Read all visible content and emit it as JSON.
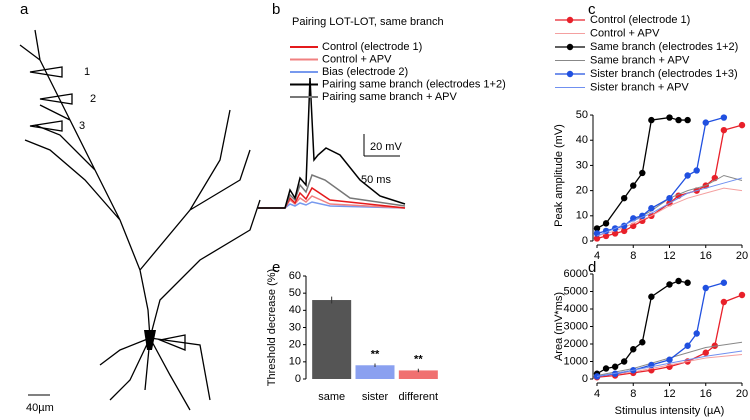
{
  "panels": {
    "a": {
      "label": "a",
      "electrodes": [
        "1",
        "2",
        "3"
      ],
      "scale_bar": "40µm"
    },
    "b": {
      "label": "b",
      "title": "Pairing LOT-LOT, same branch",
      "legend": [
        {
          "name": "Control (electrode 1)",
          "color": "#e41a1c"
        },
        {
          "name": "Control + APV",
          "color": "#f08080"
        },
        {
          "name": "Bias (electrode 2)",
          "color": "#7799ee"
        },
        {
          "name": "Pairing same branch (electrodes 1+2)",
          "color": "#000000"
        },
        {
          "name": "Pairing same branch + APV",
          "color": "#777777"
        }
      ],
      "scale_y": "20 mV",
      "scale_x": "50 ms"
    }
  },
  "chart_data": [
    {
      "type": "line",
      "panel_label": "c",
      "y_label": "Peak amplitude (mV)",
      "xlim": [
        4,
        20
      ],
      "xticks": [
        4,
        8,
        12,
        16,
        20
      ],
      "ylim": [
        0,
        52
      ],
      "yticks": [
        0,
        10,
        20,
        30,
        40,
        50
      ],
      "series": [
        {
          "name": "Control (electrode 1)",
          "color": "#e8202a",
          "markers": true,
          "x": [
            4,
            5,
            6,
            7,
            8,
            9,
            10,
            12,
            13,
            15,
            16,
            17,
            18,
            20
          ],
          "values": [
            1,
            2,
            3,
            4,
            6,
            8,
            10,
            15,
            18,
            20,
            22,
            25,
            44,
            46
          ]
        },
        {
          "name": "Control + APV",
          "color": "#f4a0a0",
          "markers": false,
          "x": [
            4,
            6,
            8,
            10,
            12,
            14,
            16,
            18,
            20
          ],
          "values": [
            2,
            4,
            7,
            10,
            14,
            17,
            19,
            21,
            20
          ]
        },
        {
          "name": "Same branch (electrodes 1+2)",
          "color": "#000000",
          "markers": true,
          "x": [
            4,
            5,
            7,
            8,
            9,
            10,
            12,
            13,
            14
          ],
          "values": [
            5,
            7,
            17,
            22,
            27,
            48,
            49,
            48,
            48
          ]
        },
        {
          "name": "Same branch + APV",
          "color": "#888888",
          "markers": false,
          "x": [
            4,
            6,
            8,
            10,
            12,
            14,
            16,
            18,
            20
          ],
          "values": [
            3,
            5,
            8,
            12,
            17,
            20,
            22,
            26,
            24
          ]
        },
        {
          "name": "Sister branch (electrodes 1+3)",
          "color": "#2050e0",
          "markers": true,
          "x": [
            4,
            5,
            6,
            7,
            8,
            9,
            10,
            12,
            14,
            15,
            16,
            18
          ],
          "values": [
            3,
            4,
            5,
            6,
            9,
            10,
            13,
            17,
            26,
            28,
            47,
            49
          ]
        },
        {
          "name": "Sister branch + APV",
          "color": "#7090f0",
          "markers": false,
          "x": [
            4,
            6,
            8,
            10,
            12,
            14,
            16,
            18,
            20
          ],
          "values": [
            2,
            5,
            8,
            11,
            15,
            19,
            21,
            23,
            25
          ]
        }
      ]
    },
    {
      "type": "line",
      "panel_label": "d",
      "y_label": "Area (mV*ms)",
      "x_label": "Stimulus intensity (µA)",
      "xlim": [
        4,
        20
      ],
      "xticks": [
        4,
        8,
        12,
        16,
        20
      ],
      "ylim": [
        0,
        6000
      ],
      "yticks": [
        0,
        1000,
        2000,
        3000,
        4000,
        5000,
        6000
      ],
      "series": [
        {
          "color": "#e8202a",
          "markers": true,
          "x": [
            4,
            6,
            8,
            10,
            12,
            14,
            16,
            17,
            18,
            20
          ],
          "values": [
            100,
            200,
            350,
            500,
            700,
            1000,
            1500,
            1900,
            4400,
            4800
          ]
        },
        {
          "color": "#f4a0a0",
          "markers": false,
          "x": [
            4,
            8,
            12,
            16,
            20
          ],
          "values": [
            150,
            400,
            800,
            1200,
            1400
          ]
        },
        {
          "color": "#000000",
          "markers": true,
          "x": [
            4,
            5,
            6,
            7,
            8,
            9,
            10,
            12,
            13,
            14
          ],
          "values": [
            300,
            600,
            700,
            1000,
            1700,
            2100,
            4700,
            5400,
            5600,
            5500
          ]
        },
        {
          "color": "#888888",
          "markers": false,
          "x": [
            4,
            8,
            12,
            16,
            20
          ],
          "values": [
            200,
            600,
            1200,
            1800,
            2100
          ]
        },
        {
          "color": "#2050e0",
          "markers": true,
          "x": [
            4,
            6,
            8,
            10,
            12,
            14,
            15,
            16,
            18
          ],
          "values": [
            150,
            300,
            500,
            800,
            1100,
            1900,
            2600,
            5200,
            5500
          ]
        },
        {
          "color": "#7090f0",
          "markers": false,
          "x": [
            4,
            8,
            12,
            16,
            20
          ],
          "values": [
            150,
            500,
            900,
            1300,
            1600
          ]
        }
      ]
    },
    {
      "type": "bar",
      "panel_label": "e",
      "y_label": "Threshold decrease (%)",
      "categories": [
        "same",
        "sister",
        "different"
      ],
      "values": [
        46,
        8,
        5
      ],
      "errors": [
        2,
        1,
        1
      ],
      "colors": [
        "#555555",
        "#8aa0f0",
        "#f07070"
      ],
      "annotations": [
        null,
        "**",
        "**"
      ],
      "ylim": [
        0,
        60
      ],
      "yticks": [
        0,
        10,
        20,
        30,
        40,
        50,
        60
      ]
    }
  ]
}
